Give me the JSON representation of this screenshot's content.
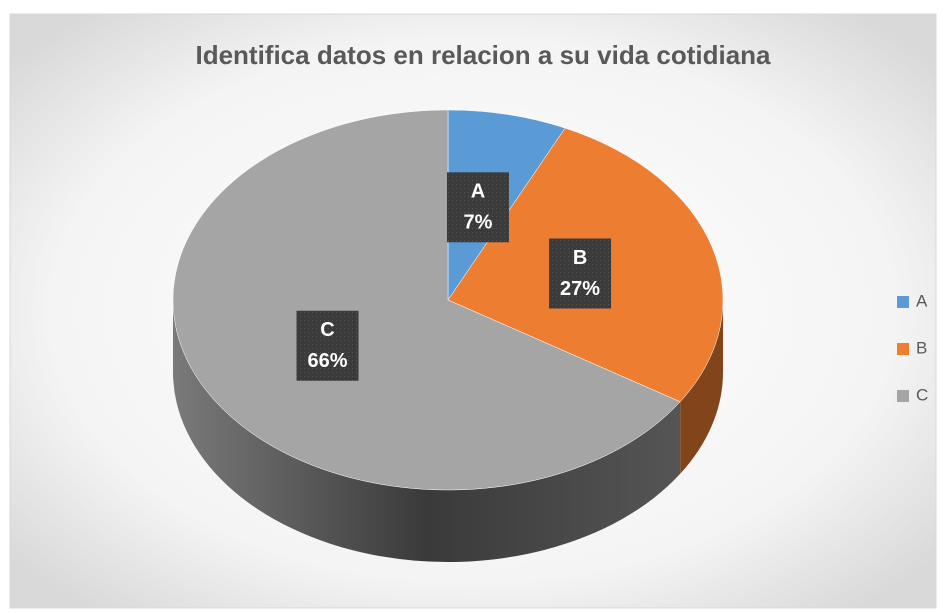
{
  "chart_data": {
    "type": "pie",
    "title": "Identifica datos en relacion a su vida cotidiana",
    "categories": [
      "A",
      "B",
      "C"
    ],
    "values": [
      7,
      27,
      66
    ],
    "value_labels": [
      "7%",
      "27%",
      "66%"
    ],
    "colors": [
      "#5b9bd5",
      "#ed7d31",
      "#a5a5a5"
    ],
    "legend": "right"
  }
}
